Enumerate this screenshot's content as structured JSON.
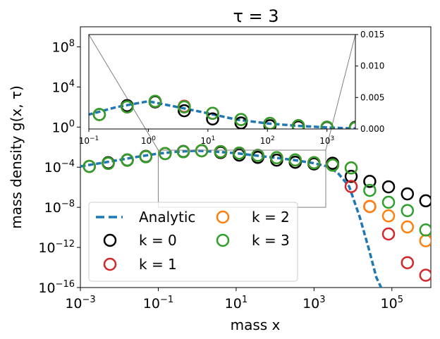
{
  "chart_data": {
    "type": "scatter",
    "title": "τ = 3",
    "xlabel": "mass x",
    "ylabel": "mass density g(x, τ)",
    "xscale": "log",
    "yscale": "log",
    "xlim": [
      0.001,
      1000000
    ],
    "ylim": [
      1e-16,
      10000000000
    ],
    "x_ticks": [
      {
        "value": 0.001,
        "base": "10",
        "exp": "−3"
      },
      {
        "value": 0.1,
        "base": "10",
        "exp": "−1"
      },
      {
        "value": 10,
        "base": "10",
        "exp": "1"
      },
      {
        "value": 1000,
        "base": "10",
        "exp": "3"
      },
      {
        "value": 100000,
        "base": "10",
        "exp": "5"
      }
    ],
    "y_ticks": [
      {
        "value": 1e-16,
        "base": "10",
        "exp": "−16"
      },
      {
        "value": 1e-12,
        "base": "10",
        "exp": "−12"
      },
      {
        "value": 1e-08,
        "base": "10",
        "exp": "−8"
      },
      {
        "value": 0.0001,
        "base": "10",
        "exp": "−4"
      },
      {
        "value": 1,
        "base": "10",
        "exp": "0"
      },
      {
        "value": 10000,
        "base": "10",
        "exp": "4"
      },
      {
        "value": 100000000,
        "base": "10",
        "exp": "8"
      }
    ],
    "series": [
      {
        "name": "Analytic",
        "style": "dashed-line",
        "color": "#1f77b4",
        "x": [
          0.001,
          0.003,
          0.01,
          0.03,
          0.1,
          0.3,
          1,
          3,
          10,
          30,
          100,
          300,
          1000,
          2000,
          4000,
          8000,
          15000,
          25000,
          40000,
          70000
        ],
        "y": [
          0.00012,
          0.00024,
          0.00053,
          0.0011,
          0.0023,
          0.0035,
          0.0044,
          0.0035,
          0.0025,
          0.0015,
          0.00088,
          0.00052,
          0.00025,
          0.00013,
          3e-05,
          1.2e-06,
          1e-09,
          1e-12,
          1e-15,
          1e-17
        ]
      },
      {
        "name": "k = 0",
        "style": "open-circle",
        "color": "#000000",
        "x": [
          0.0017,
          0.0052,
          0.016,
          0.048,
          0.15,
          0.44,
          1.3,
          4,
          12,
          36,
          110,
          330,
          1000,
          3000,
          9000,
          27000,
          82000,
          250000,
          740000
        ],
        "y": [
          0.00012,
          0.00028,
          0.0005,
          0.0012,
          0.0023,
          0.0037,
          0.0043,
          0.0029,
          0.0016,
          0.00095,
          0.00051,
          0.00031,
          0.00021,
          0.00025,
          1.2e-05,
          3.8e-06,
          1.1e-06,
          2.2e-07,
          4.5e-08
        ]
      },
      {
        "name": "k = 1",
        "style": "open-circle",
        "color": "#d62728",
        "x": [
          0.0017,
          0.0052,
          0.016,
          0.048,
          0.15,
          0.44,
          1.3,
          4,
          12,
          36,
          110,
          330,
          1000,
          3000,
          9000,
          27000,
          82000,
          250000,
          740000
        ],
        "y": [
          0.00012,
          0.00024,
          0.00053,
          0.0011,
          0.0023,
          0.0035,
          0.0044,
          0.0036,
          0.0025,
          0.0015,
          0.00088,
          0.00052,
          0.00028,
          0.00016,
          1.2e-06,
          1.2e-08,
          2.2e-11,
          3e-14,
          1.7e-15
        ]
      },
      {
        "name": "k = 2",
        "style": "open-circle",
        "color": "#ff7f0e",
        "x": [
          0.0017,
          0.0052,
          0.016,
          0.048,
          0.15,
          0.44,
          1.3,
          4,
          12,
          36,
          110,
          330,
          1000,
          3000,
          9000,
          27000,
          82000,
          250000,
          740000
        ],
        "y": [
          0.00012,
          0.00024,
          0.00053,
          0.0011,
          0.0023,
          0.0035,
          0.0044,
          0.0035,
          0.0025,
          0.0015,
          0.00088,
          0.00052,
          0.00028,
          0.00016,
          8.4e-05,
          1.2e-08,
          1.4e-09,
          1.1e-10,
          4.6e-12
        ]
      },
      {
        "name": "k = 3",
        "style": "open-circle",
        "color": "#2ca02c",
        "x": [
          0.0017,
          0.0052,
          0.016,
          0.048,
          0.15,
          0.44,
          1.3,
          4,
          12,
          36,
          110,
          330,
          1000,
          3000,
          9000,
          27000,
          82000,
          250000,
          740000
        ],
        "y": [
          0.00012,
          0.00024,
          0.00053,
          0.0011,
          0.0023,
          0.0035,
          0.0044,
          0.0035,
          0.0025,
          0.0015,
          0.00088,
          0.00052,
          0.00028,
          0.00016,
          8.5e-05,
          4.9e-07,
          3.2e-08,
          4.7e-09,
          5.5e-11
        ]
      }
    ],
    "legend": {
      "placement": "lower-left",
      "columns": 2,
      "entries": [
        {
          "label": "Analytic",
          "color": "#1f77b4",
          "marker": "dashed-line"
        },
        {
          "label": "k = 2",
          "color": "#ff7f0e",
          "marker": "open-circle"
        },
        {
          "label": "k = 0",
          "color": "#000000",
          "marker": "open-circle"
        },
        {
          "label": "k = 3",
          "color": "#2ca02c",
          "marker": "open-circle"
        },
        {
          "label": "k = 1",
          "color": "#d62728",
          "marker": "open-circle"
        }
      ]
    },
    "inset": {
      "xscale": "log",
      "yscale": "linear",
      "xlim": [
        0.1,
        3000
      ],
      "ylim": [
        0,
        0.015
      ],
      "y_axis_side": "right",
      "x_ticks": [
        {
          "value": 0.1,
          "base": "10",
          "exp": "−1"
        },
        {
          "value": 1,
          "base": "10",
          "exp": "0"
        },
        {
          "value": 10,
          "base": "10",
          "exp": "1"
        },
        {
          "value": 100,
          "base": "10",
          "exp": "2"
        },
        {
          "value": 1000,
          "base": "10",
          "exp": "3"
        }
      ],
      "y_ticks": [
        "0.000",
        "0.005",
        "0.010",
        "0.015"
      ],
      "y_tick_values": [
        0,
        0.005,
        0.01,
        0.015
      ],
      "zoom_region": {
        "xlim": [
          0.1,
          2000
        ],
        "ylim": [
          1e-08,
          0.005
        ]
      }
    }
  }
}
